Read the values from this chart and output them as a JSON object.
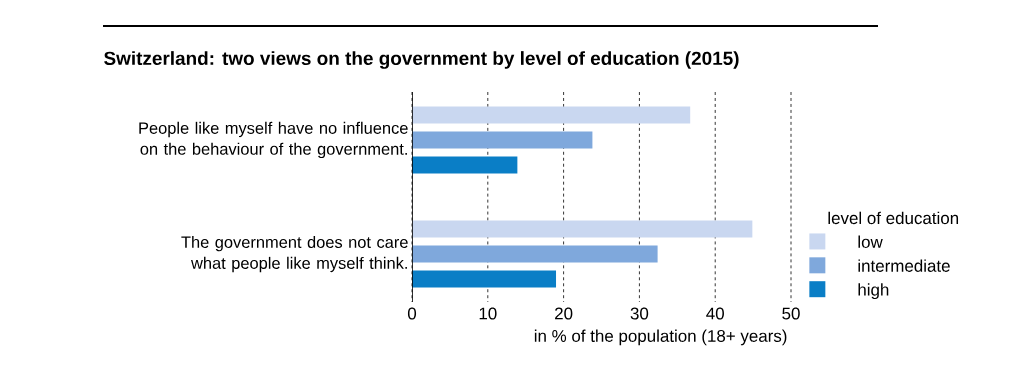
{
  "chart_data": {
    "type": "bar",
    "orientation": "horizontal",
    "title": "Switzerland: two views on the government by level of education (2015)",
    "xlabel": "in % of the population (18+ years)",
    "categories": [
      "People like myself have no influence on the behaviour of the government.",
      "The government does not care what people like myself think."
    ],
    "series": [
      {
        "name": "low",
        "color": "#c9d7f0",
        "values": [
          36.7,
          44.9
        ]
      },
      {
        "name": "intermediate",
        "color": "#7fa8dc",
        "values": [
          23.8,
          32.4
        ]
      },
      {
        "name": "high",
        "color": "#0a7ec6",
        "values": [
          13.9,
          19.0
        ]
      }
    ],
    "legend_title": "level of education",
    "legend": "right",
    "xlim": [
      0,
      50
    ],
    "xticks": [
      0,
      10,
      20,
      30,
      40,
      50
    ],
    "grid": "x"
  }
}
